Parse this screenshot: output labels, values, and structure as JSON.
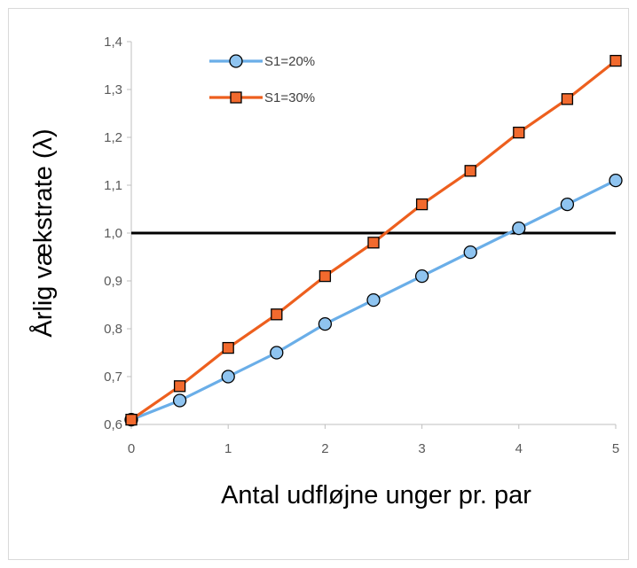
{
  "chart_data": {
    "type": "line",
    "title": "",
    "xlabel": "Antal udfløjne unger pr. par",
    "ylabel": "Årlig vækstrate (λ)",
    "x": [
      0,
      0.5,
      1,
      1.5,
      2,
      2.5,
      3,
      3.5,
      4,
      4.5,
      5
    ],
    "xlim": [
      0,
      5
    ],
    "ylim": [
      0.6,
      1.4
    ],
    "x_ticks": [
      0,
      1,
      2,
      3,
      4,
      5
    ],
    "x_tick_labels": [
      "0",
      "1",
      "2",
      "3",
      "4",
      "5"
    ],
    "y_ticks": [
      0.6,
      0.7,
      0.8,
      0.9,
      1.0,
      1.1,
      1.2,
      1.3,
      1.4
    ],
    "y_tick_labels": [
      "0,6",
      "0,7",
      "0,8",
      "0,9",
      "1,0",
      "1,1",
      "1,2",
      "1,3",
      "1,4"
    ],
    "reference_line": {
      "y": 1.0,
      "color": "#000000"
    },
    "grid": false,
    "legend_position": "top-left",
    "series": [
      {
        "name": "S1=20%",
        "marker": "circle",
        "line_color": "#6aaee8",
        "marker_fill": "#8fc4f0",
        "values": [
          0.61,
          0.65,
          0.7,
          0.75,
          0.81,
          0.86,
          0.91,
          0.96,
          1.01,
          1.06,
          1.11
        ]
      },
      {
        "name": "S1=30%",
        "marker": "square",
        "line_color": "#ed5f1e",
        "marker_fill": "#f26a2e",
        "values": [
          0.61,
          0.68,
          0.76,
          0.83,
          0.91,
          0.98,
          1.06,
          1.13,
          1.21,
          1.28,
          1.36
        ]
      }
    ]
  }
}
